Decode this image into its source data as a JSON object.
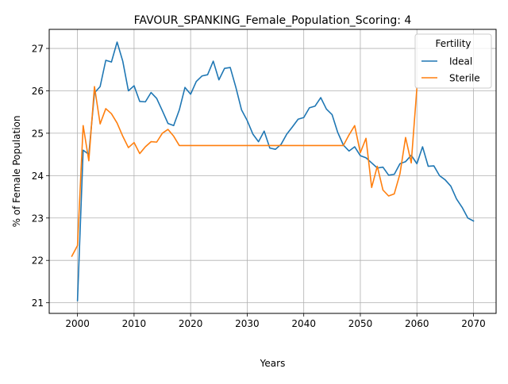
{
  "chart_data": {
    "type": "line",
    "title": "FAVOUR_SPANKING_Female_Population_Scoring: 4",
    "xlabel": "Years",
    "ylabel": "% of Female Population",
    "xlim": [
      1995,
      2074
    ],
    "ylim": [
      20.75,
      27.45
    ],
    "xticks": [
      2000,
      2010,
      2020,
      2030,
      2040,
      2050,
      2060,
      2070
    ],
    "yticks": [
      21,
      22,
      23,
      24,
      25,
      26,
      27
    ],
    "grid": true,
    "legend": {
      "title": "Fertility",
      "placement": "top-right"
    },
    "series": [
      {
        "name": "Ideal",
        "color": "#1f77b4",
        "points": [
          [
            2000,
            21.05
          ],
          [
            2001,
            24.6
          ],
          [
            2002,
            24.5
          ],
          [
            2003,
            25.95
          ],
          [
            2004,
            26.1
          ],
          [
            2005,
            26.72
          ],
          [
            2006,
            26.68
          ],
          [
            2007,
            27.15
          ],
          [
            2008,
            26.7
          ],
          [
            2009,
            26.0
          ],
          [
            2010,
            26.12
          ],
          [
            2011,
            25.75
          ],
          [
            2012,
            25.74
          ],
          [
            2013,
            25.96
          ],
          [
            2014,
            25.82
          ],
          [
            2015,
            25.53
          ],
          [
            2016,
            25.23
          ],
          [
            2017,
            25.18
          ],
          [
            2018,
            25.55
          ],
          [
            2019,
            26.08
          ],
          [
            2020,
            25.92
          ],
          [
            2021,
            26.22
          ],
          [
            2022,
            26.35
          ],
          [
            2023,
            26.38
          ],
          [
            2024,
            26.7
          ],
          [
            2025,
            26.26
          ],
          [
            2026,
            26.53
          ],
          [
            2027,
            26.55
          ],
          [
            2028,
            26.08
          ],
          [
            2029,
            25.55
          ],
          [
            2030,
            25.3
          ],
          [
            2031,
            24.98
          ],
          [
            2032,
            24.8
          ],
          [
            2033,
            25.05
          ],
          [
            2034,
            24.65
          ],
          [
            2035,
            24.62
          ],
          [
            2036,
            24.74
          ],
          [
            2037,
            24.98
          ],
          [
            2038,
            25.15
          ],
          [
            2039,
            25.33
          ],
          [
            2040,
            25.37
          ],
          [
            2041,
            25.6
          ],
          [
            2042,
            25.64
          ],
          [
            2043,
            25.84
          ],
          [
            2044,
            25.57
          ],
          [
            2045,
            25.44
          ],
          [
            2046,
            25.02
          ],
          [
            2047,
            24.72
          ],
          [
            2048,
            24.58
          ],
          [
            2049,
            24.68
          ],
          [
            2050,
            24.47
          ],
          [
            2051,
            24.42
          ],
          [
            2052,
            24.3
          ],
          [
            2053,
            24.18
          ],
          [
            2054,
            24.2
          ],
          [
            2055,
            24.01
          ],
          [
            2056,
            24.03
          ],
          [
            2057,
            24.28
          ],
          [
            2058,
            24.33
          ],
          [
            2059,
            24.48
          ],
          [
            2060,
            24.28
          ],
          [
            2061,
            24.68
          ],
          [
            2062,
            24.22
          ],
          [
            2063,
            24.23
          ],
          [
            2064,
            24.0
          ],
          [
            2065,
            23.9
          ],
          [
            2066,
            23.75
          ],
          [
            2067,
            23.45
          ],
          [
            2068,
            23.25
          ],
          [
            2069,
            23.0
          ],
          [
            2070,
            22.93
          ]
        ]
      },
      {
        "name": "Sterile",
        "color": "#ff7f0e",
        "points": [
          [
            1999,
            22.1
          ],
          [
            2000,
            22.35
          ],
          [
            2001,
            25.18
          ],
          [
            2002,
            24.35
          ],
          [
            2003,
            26.1
          ],
          [
            2004,
            25.22
          ],
          [
            2005,
            25.58
          ],
          [
            2006,
            25.46
          ],
          [
            2007,
            25.24
          ],
          [
            2008,
            24.93
          ],
          [
            2009,
            24.66
          ],
          [
            2010,
            24.78
          ],
          [
            2011,
            24.52
          ],
          [
            2012,
            24.68
          ],
          [
            2013,
            24.8
          ],
          [
            2014,
            24.79
          ],
          [
            2015,
            25.0
          ],
          [
            2016,
            25.09
          ],
          [
            2017,
            24.93
          ],
          [
            2018,
            24.71
          ],
          [
            2047,
            24.71
          ],
          [
            2048,
            24.96
          ],
          [
            2049,
            25.18
          ],
          [
            2050,
            24.54
          ],
          [
            2051,
            24.88
          ],
          [
            2052,
            23.72
          ],
          [
            2053,
            24.22
          ],
          [
            2054,
            23.66
          ],
          [
            2055,
            23.52
          ],
          [
            2056,
            23.57
          ],
          [
            2057,
            24.04
          ],
          [
            2058,
            24.9
          ],
          [
            2059,
            24.3
          ],
          [
            2060,
            26.07
          ]
        ]
      }
    ]
  }
}
